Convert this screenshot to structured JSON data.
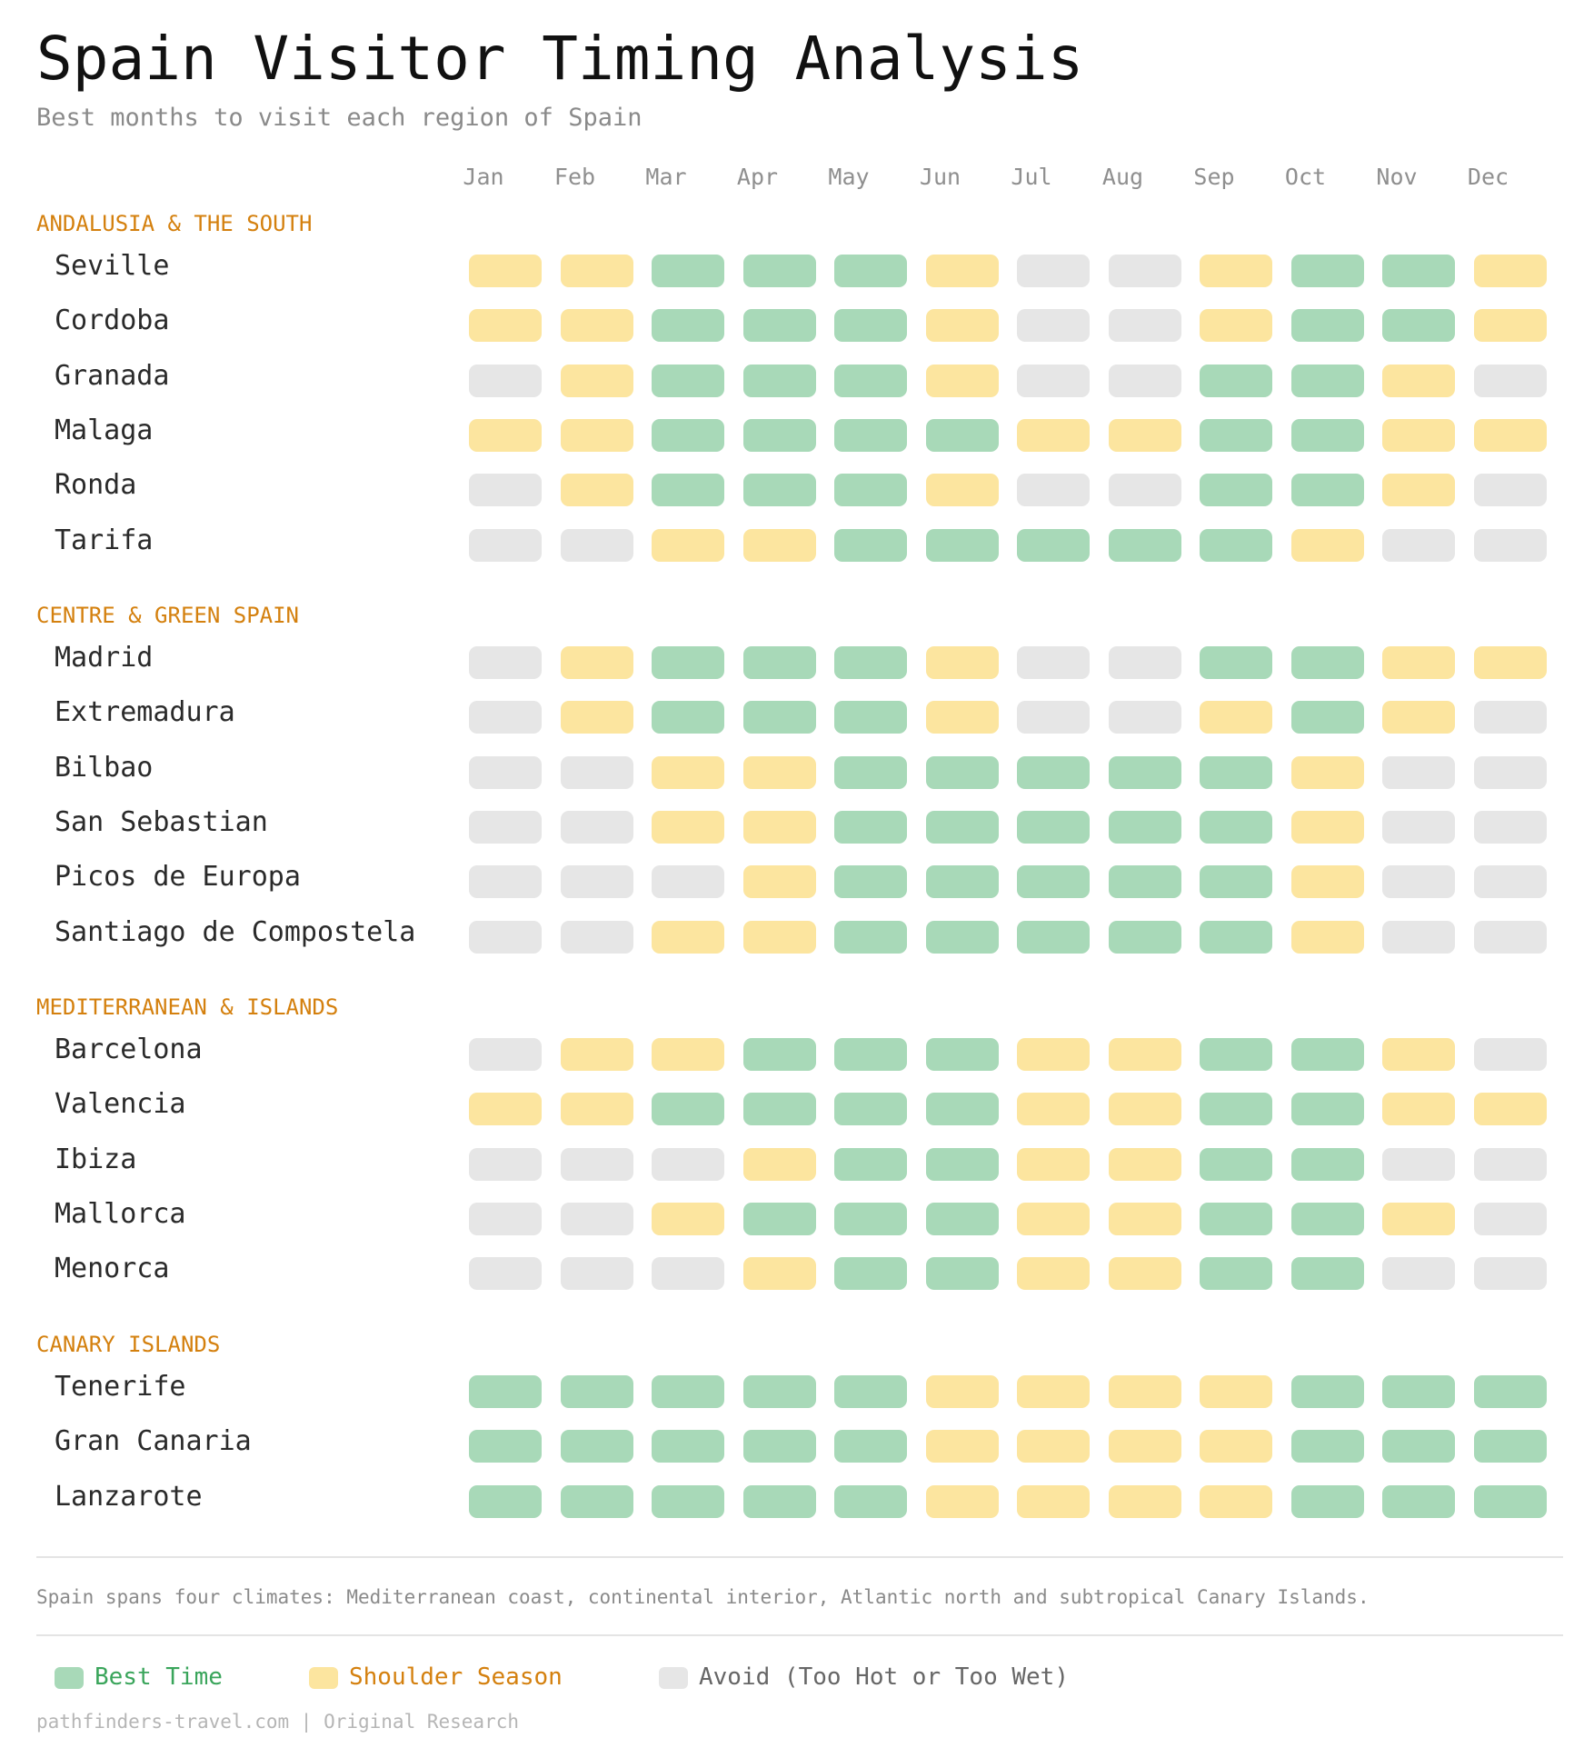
{
  "title": "Spain Visitor Timing Analysis",
  "subtitle": "Best months to visit each region of Spain",
  "colors": {
    "best": "#a8d9b8",
    "shoulder": "#fce59f",
    "avoid": "#e6e6e6",
    "group_heading": "#d4800e",
    "best_text": "#3aa55b",
    "shoulder_text": "#d4800e",
    "avoid_text": "#666666"
  },
  "chart_data": {
    "type": "heatmap",
    "title": "Spain Visitor Timing Analysis",
    "subtitle": "Best months to visit each region of Spain",
    "months": [
      "Jan",
      "Feb",
      "Mar",
      "Apr",
      "May",
      "Jun",
      "Jul",
      "Aug",
      "Sep",
      "Oct",
      "Nov",
      "Dec"
    ],
    "categories_legend": {
      "B": "Best Time",
      "S": "Shoulder Season",
      "A": "Avoid (Too Hot or Too Wet)"
    },
    "groups": [
      {
        "name": "ANDALUSIA & THE SOUTH",
        "rows": [
          {
            "name": "Seville",
            "values": [
              "S",
              "S",
              "B",
              "B",
              "B",
              "S",
              "A",
              "A",
              "S",
              "B",
              "B",
              "S"
            ]
          },
          {
            "name": "Cordoba",
            "values": [
              "S",
              "S",
              "B",
              "B",
              "B",
              "S",
              "A",
              "A",
              "S",
              "B",
              "B",
              "S"
            ]
          },
          {
            "name": "Granada",
            "values": [
              "A",
              "S",
              "B",
              "B",
              "B",
              "S",
              "A",
              "A",
              "B",
              "B",
              "S",
              "A"
            ]
          },
          {
            "name": "Malaga",
            "values": [
              "S",
              "S",
              "B",
              "B",
              "B",
              "B",
              "S",
              "S",
              "B",
              "B",
              "S",
              "S"
            ]
          },
          {
            "name": "Ronda",
            "values": [
              "A",
              "S",
              "B",
              "B",
              "B",
              "S",
              "A",
              "A",
              "B",
              "B",
              "S",
              "A"
            ]
          },
          {
            "name": "Tarifa",
            "values": [
              "A",
              "A",
              "S",
              "S",
              "B",
              "B",
              "B",
              "B",
              "B",
              "S",
              "A",
              "A"
            ]
          }
        ]
      },
      {
        "name": "CENTRE & GREEN SPAIN",
        "rows": [
          {
            "name": "Madrid",
            "values": [
              "A",
              "S",
              "B",
              "B",
              "B",
              "S",
              "A",
              "A",
              "B",
              "B",
              "S",
              "S"
            ]
          },
          {
            "name": "Extremadura",
            "values": [
              "A",
              "S",
              "B",
              "B",
              "B",
              "S",
              "A",
              "A",
              "S",
              "B",
              "S",
              "A"
            ]
          },
          {
            "name": "Bilbao",
            "values": [
              "A",
              "A",
              "S",
              "S",
              "B",
              "B",
              "B",
              "B",
              "B",
              "S",
              "A",
              "A"
            ]
          },
          {
            "name": "San Sebastian",
            "values": [
              "A",
              "A",
              "S",
              "S",
              "B",
              "B",
              "B",
              "B",
              "B",
              "S",
              "A",
              "A"
            ]
          },
          {
            "name": "Picos de Europa",
            "values": [
              "A",
              "A",
              "A",
              "S",
              "B",
              "B",
              "B",
              "B",
              "B",
              "S",
              "A",
              "A"
            ]
          },
          {
            "name": "Santiago de Compostela",
            "values": [
              "A",
              "A",
              "S",
              "S",
              "B",
              "B",
              "B",
              "B",
              "B",
              "S",
              "A",
              "A"
            ]
          }
        ]
      },
      {
        "name": "MEDITERRANEAN & ISLANDS",
        "rows": [
          {
            "name": "Barcelona",
            "values": [
              "A",
              "S",
              "S",
              "B",
              "B",
              "B",
              "S",
              "S",
              "B",
              "B",
              "S",
              "A"
            ]
          },
          {
            "name": "Valencia",
            "values": [
              "S",
              "S",
              "B",
              "B",
              "B",
              "B",
              "S",
              "S",
              "B",
              "B",
              "S",
              "S"
            ]
          },
          {
            "name": "Ibiza",
            "values": [
              "A",
              "A",
              "A",
              "S",
              "B",
              "B",
              "S",
              "S",
              "B",
              "B",
              "A",
              "A"
            ]
          },
          {
            "name": "Mallorca",
            "values": [
              "A",
              "A",
              "S",
              "B",
              "B",
              "B",
              "S",
              "S",
              "B",
              "B",
              "S",
              "A"
            ]
          },
          {
            "name": "Menorca",
            "values": [
              "A",
              "A",
              "A",
              "S",
              "B",
              "B",
              "S",
              "S",
              "B",
              "B",
              "A",
              "A"
            ]
          }
        ]
      },
      {
        "name": "CANARY ISLANDS",
        "rows": [
          {
            "name": "Tenerife",
            "values": [
              "B",
              "B",
              "B",
              "B",
              "B",
              "S",
              "S",
              "S",
              "S",
              "B",
              "B",
              "B"
            ]
          },
          {
            "name": "Gran Canaria",
            "values": [
              "B",
              "B",
              "B",
              "B",
              "B",
              "S",
              "S",
              "S",
              "S",
              "B",
              "B",
              "B"
            ]
          },
          {
            "name": "Lanzarote",
            "values": [
              "B",
              "B",
              "B",
              "B",
              "B",
              "S",
              "S",
              "S",
              "S",
              "B",
              "B",
              "B"
            ]
          }
        ]
      }
    ]
  },
  "note": "Spain spans four climates: Mediterranean coast, continental interior, Atlantic north and subtropical Canary Islands.",
  "legend": [
    {
      "key": "B",
      "label": "Best Time"
    },
    {
      "key": "S",
      "label": "Shoulder Season"
    },
    {
      "key": "A",
      "label": "Avoid (Too Hot or Too Wet)"
    }
  ],
  "footer": "pathfinders-travel.com | Original Research"
}
